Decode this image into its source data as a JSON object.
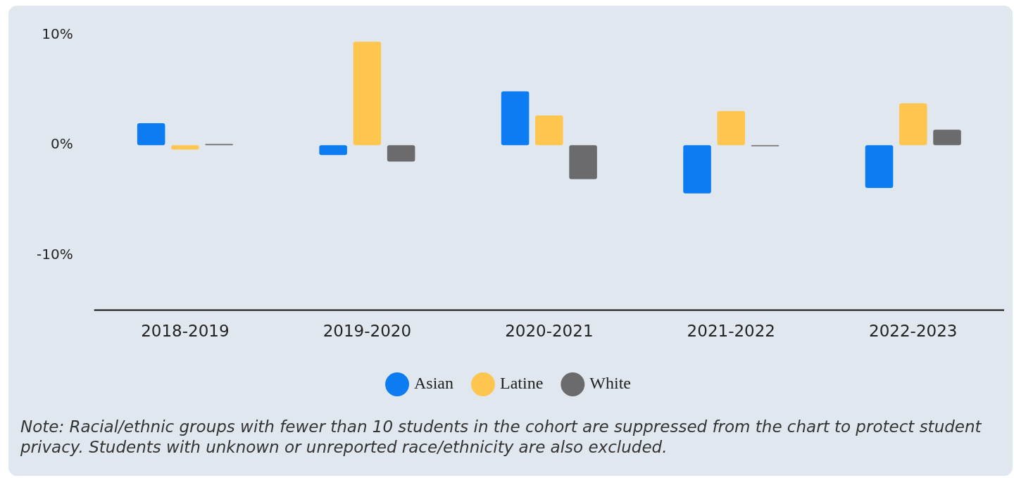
{
  "chart_data": {
    "type": "bar",
    "categories": [
      "2018-2019",
      "2019-2020",
      "2020-2021",
      "2021-2022",
      "2022-2023"
    ],
    "series": [
      {
        "name": "Asian",
        "color": "#0d7cf2",
        "values": [
          2.0,
          -0.9,
          4.9,
          -4.4,
          -3.9
        ]
      },
      {
        "name": "Latine",
        "color": "#ffc64f",
        "values": [
          -0.4,
          9.4,
          2.7,
          3.1,
          3.8
        ]
      },
      {
        "name": "White",
        "color": "#6b6b6d",
        "values": [
          0.1,
          -1.5,
          -3.1,
          -0.1,
          1.4
        ]
      }
    ],
    "ylim": [
      -15,
      10
    ],
    "yticks": [
      {
        "value": -10,
        "label": "-10%"
      },
      {
        "value": 0,
        "label": "0%"
      },
      {
        "value": 10,
        "label": "10%"
      }
    ],
    "grid": false,
    "legend": "bottom",
    "annotations": [
      "Note: Racial/ethnic groups with fewer than 10 students in the cohort are suppressed from the chart to protect student privacy. Students with unknown or unreported race/ethnicity are also excluded."
    ]
  }
}
